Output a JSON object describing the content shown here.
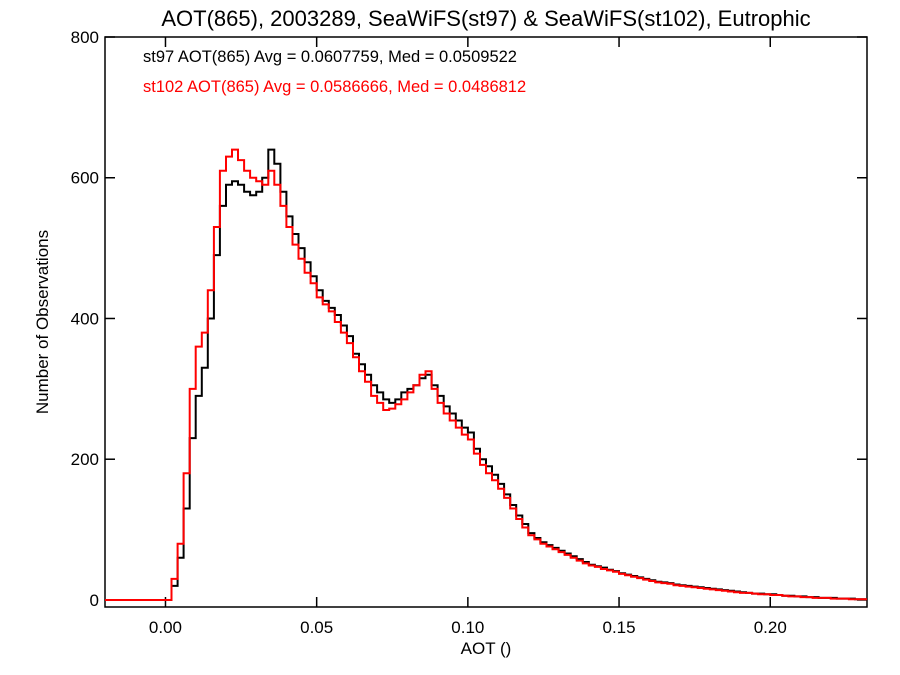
{
  "chart_data": {
    "type": "line",
    "title": "AOT(865), 2003289, SeaWiFS(st97) & SeaWiFS(st102), Eutrophic",
    "xlabel": "AOT ()",
    "ylabel": "Number of Observations",
    "xlim": [
      -0.02,
      0.232
    ],
    "ylim": [
      -10,
      800
    ],
    "x_ticks": [
      {
        "value": 0.0,
        "label": "0.00"
      },
      {
        "value": 0.05,
        "label": "0.05"
      },
      {
        "value": 0.1,
        "label": "0.10"
      },
      {
        "value": 0.15,
        "label": "0.15"
      },
      {
        "value": 0.2,
        "label": "0.20"
      }
    ],
    "y_ticks": [
      {
        "value": 0,
        "label": "0"
      },
      {
        "value": 200,
        "label": "200"
      },
      {
        "value": 400,
        "label": "400"
      },
      {
        "value": 600,
        "label": "600"
      },
      {
        "value": 800,
        "label": "800"
      }
    ],
    "step_style": "histogram",
    "annotations": [
      {
        "text": "st97 AOT(865) Avg = 0.0607759, Med = 0.0509522",
        "color": "#000000"
      },
      {
        "text": "st102 AOT(865) Avg = 0.0586666, Med = 0.0486812",
        "color": "#ff0000"
      }
    ],
    "series": [
      {
        "color": "#000000",
        "x": [
          -0.02,
          0.0,
          0.002,
          0.004,
          0.006,
          0.008,
          0.01,
          0.012,
          0.014,
          0.016,
          0.018,
          0.02,
          0.022,
          0.024,
          0.026,
          0.028,
          0.03,
          0.032,
          0.034,
          0.036,
          0.038,
          0.04,
          0.042,
          0.044,
          0.046,
          0.048,
          0.05,
          0.052,
          0.054,
          0.056,
          0.058,
          0.06,
          0.062,
          0.064,
          0.066,
          0.068,
          0.07,
          0.072,
          0.074,
          0.076,
          0.078,
          0.08,
          0.082,
          0.084,
          0.086,
          0.088,
          0.09,
          0.092,
          0.094,
          0.096,
          0.098,
          0.1,
          0.102,
          0.104,
          0.106,
          0.108,
          0.11,
          0.112,
          0.114,
          0.116,
          0.118,
          0.12,
          0.122,
          0.124,
          0.126,
          0.128,
          0.13,
          0.132,
          0.134,
          0.136,
          0.138,
          0.14,
          0.142,
          0.144,
          0.146,
          0.148,
          0.15,
          0.152,
          0.154,
          0.156,
          0.158,
          0.16,
          0.162,
          0.164,
          0.166,
          0.168,
          0.17,
          0.172,
          0.174,
          0.176,
          0.178,
          0.18,
          0.182,
          0.184,
          0.186,
          0.188,
          0.19,
          0.192,
          0.194,
          0.196,
          0.198,
          0.2,
          0.202,
          0.204,
          0.206,
          0.208,
          0.21,
          0.212,
          0.214,
          0.216,
          0.218,
          0.22,
          0.222,
          0.224,
          0.226,
          0.228,
          0.23
        ],
        "values": [
          0,
          0,
          20,
          60,
          130,
          230,
          290,
          330,
          400,
          490,
          560,
          590,
          595,
          590,
          580,
          575,
          580,
          600,
          640,
          620,
          580,
          545,
          520,
          500,
          480,
          460,
          440,
          425,
          415,
          405,
          390,
          375,
          350,
          335,
          320,
          305,
          295,
          285,
          280,
          285,
          295,
          300,
          305,
          315,
          320,
          305,
          290,
          275,
          265,
          255,
          245,
          238,
          215,
          200,
          190,
          178,
          165,
          150,
          135,
          120,
          108,
          95,
          88,
          82,
          78,
          74,
          70,
          66,
          62,
          58,
          54,
          50,
          48,
          46,
          43,
          41,
          38,
          36,
          34,
          32,
          30,
          28,
          26,
          25,
          24,
          22,
          21,
          20,
          19,
          18,
          17,
          16,
          15,
          14,
          13,
          12,
          11,
          10,
          9,
          9,
          8,
          8,
          7,
          6,
          6,
          5,
          5,
          4,
          4,
          3,
          3,
          3,
          2,
          2,
          2,
          1,
          1
        ]
      },
      {
        "color": "#ff0000",
        "x": [
          -0.02,
          0.0,
          0.002,
          0.004,
          0.006,
          0.008,
          0.01,
          0.012,
          0.014,
          0.016,
          0.018,
          0.02,
          0.022,
          0.024,
          0.026,
          0.028,
          0.03,
          0.032,
          0.034,
          0.036,
          0.038,
          0.04,
          0.042,
          0.044,
          0.046,
          0.048,
          0.05,
          0.052,
          0.054,
          0.056,
          0.058,
          0.06,
          0.062,
          0.064,
          0.066,
          0.068,
          0.07,
          0.072,
          0.074,
          0.076,
          0.078,
          0.08,
          0.082,
          0.084,
          0.086,
          0.088,
          0.09,
          0.092,
          0.094,
          0.096,
          0.098,
          0.1,
          0.102,
          0.104,
          0.106,
          0.108,
          0.11,
          0.112,
          0.114,
          0.116,
          0.118,
          0.12,
          0.122,
          0.124,
          0.126,
          0.128,
          0.13,
          0.132,
          0.134,
          0.136,
          0.138,
          0.14,
          0.142,
          0.144,
          0.146,
          0.148,
          0.15,
          0.152,
          0.154,
          0.156,
          0.158,
          0.16,
          0.162,
          0.164,
          0.166,
          0.168,
          0.17,
          0.172,
          0.174,
          0.176,
          0.178,
          0.18,
          0.182,
          0.184,
          0.186,
          0.188,
          0.19,
          0.192,
          0.194,
          0.196,
          0.198,
          0.2,
          0.202,
          0.204,
          0.206,
          0.208,
          0.21,
          0.212,
          0.214,
          0.216,
          0.218,
          0.22,
          0.222,
          0.224,
          0.226,
          0.228,
          0.23
        ],
        "values": [
          0,
          0,
          30,
          80,
          180,
          300,
          360,
          380,
          440,
          530,
          610,
          630,
          640,
          625,
          610,
          600,
          595,
          590,
          610,
          590,
          560,
          530,
          505,
          485,
          465,
          450,
          430,
          420,
          410,
          395,
          380,
          365,
          345,
          325,
          310,
          290,
          280,
          270,
          272,
          278,
          285,
          295,
          305,
          320,
          325,
          300,
          280,
          265,
          255,
          245,
          235,
          228,
          208,
          192,
          180,
          170,
          158,
          145,
          130,
          115,
          103,
          92,
          86,
          80,
          76,
          72,
          68,
          64,
          60,
          56,
          52,
          49,
          47,
          44,
          42,
          40,
          37,
          35,
          33,
          31,
          29,
          27,
          25,
          24,
          23,
          21,
          20,
          19,
          18,
          17,
          16,
          15,
          14,
          13,
          12,
          11,
          10,
          10,
          9,
          8,
          8,
          7,
          7,
          6,
          5,
          5,
          4,
          4,
          3,
          3,
          3,
          2,
          2,
          2,
          1,
          1,
          1
        ]
      }
    ]
  }
}
